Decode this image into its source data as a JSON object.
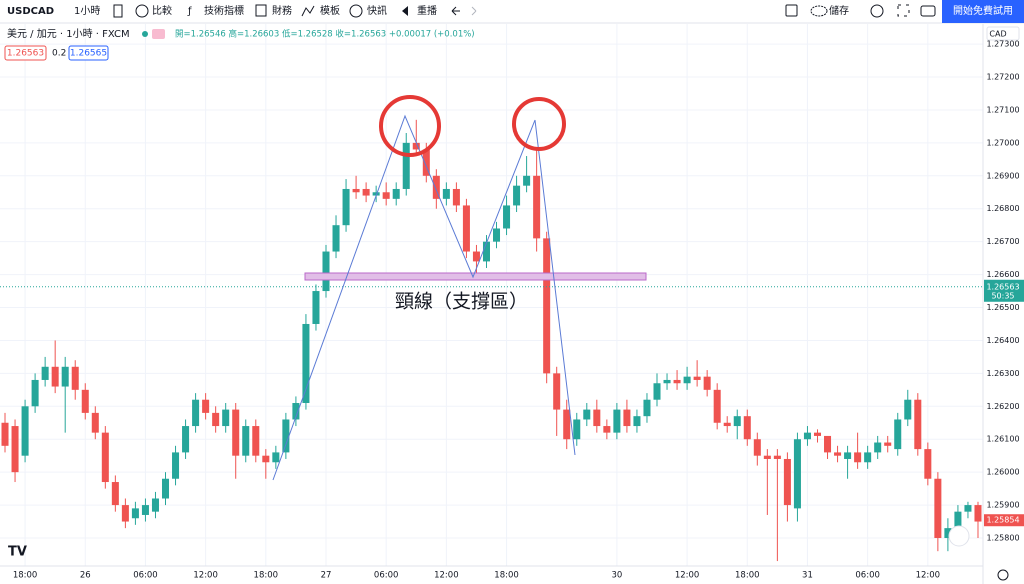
{
  "ui": {
    "symbol": "USDCAD",
    "interval": "1小時",
    "compare": "比較",
    "indicators": "技術指標",
    "financials": "財務",
    "templates": "模板",
    "alerts": "快訊",
    "replay": "重播",
    "save": "儲存",
    "trial": "開始免費試用",
    "pair": "美元 / 加元 · 1小時 · FXCM",
    "ohlc": "開=1.26546 高=1.26603 低=1.26528 收=1.26563 +0.00017 (+0.01%)",
    "bid": "1.26563",
    "spread": "0.2",
    "ask": "1.26565",
    "currency": "CAD"
  },
  "chart_data": {
    "type": "candlestick",
    "annotation": "頸線（支撐區）",
    "up_color": "#26a69a",
    "down_color": "#ef5350",
    "grid": true,
    "categories": [
      null,
      null,
      "18:00",
      null,
      null,
      null,
      null,
      null,
      "26",
      null,
      null,
      null,
      null,
      null,
      "06:00",
      null,
      null,
      null,
      null,
      null,
      "12:00",
      null,
      null,
      null,
      null,
      null,
      "18:00",
      null,
      null,
      null,
      null,
      null,
      "27",
      null,
      null,
      null,
      null,
      null,
      "06:00",
      null,
      null,
      null,
      null,
      null,
      "12:00",
      null,
      null,
      null,
      null,
      null,
      "18:00",
      null,
      null,
      null,
      null,
      null,
      null,
      null,
      null,
      null,
      null,
      "30",
      null,
      null,
      null,
      null,
      null,
      null,
      "12:00",
      null,
      null,
      null,
      null,
      null,
      "18:00",
      null,
      null,
      null,
      null,
      null,
      "31",
      null,
      null,
      null,
      null,
      null,
      "06:00",
      null,
      null,
      null,
      null,
      null,
      "12:00",
      null,
      null,
      null,
      null,
      null
    ],
    "open": [
      1.2615,
      1.2614,
      1.2605,
      1.262,
      1.2628,
      1.2632,
      1.2626,
      1.2632,
      1.2625,
      1.2618,
      1.2612,
      1.2597,
      1.259,
      1.2586,
      1.2587,
      1.2588,
      1.2592,
      1.2598,
      1.2606,
      1.2614,
      1.2622,
      1.2618,
      1.2614,
      1.2619,
      1.2605,
      1.2614,
      1.2605,
      1.2603,
      1.2606,
      1.2616,
      1.2621,
      1.2645,
      1.2655,
      1.2667,
      1.2675,
      1.2686,
      1.2686,
      1.2684,
      1.2685,
      1.2683,
      1.2686,
      1.27,
      1.2698,
      1.269,
      1.2683,
      1.2686,
      1.2681,
      1.2667,
      1.2664,
      1.267,
      1.2674,
      1.2681,
      1.2687,
      1.269,
      1.2671,
      1.263,
      1.2619,
      1.261,
      1.2616,
      1.2619,
      1.2614,
      1.2612,
      1.2619,
      1.2614,
      1.2617,
      1.2622,
      1.2627,
      1.2628,
      1.2627,
      1.2629,
      1.2629,
      1.2625,
      1.2615,
      1.2614,
      1.2617,
      1.261,
      1.2605,
      1.2605,
      1.2604,
      1.2589,
      1.261,
      1.2612,
      1.2611,
      1.2606,
      1.2604,
      1.2606,
      1.2603,
      1.2606,
      1.2609,
      1.2607,
      1.2616,
      1.2622,
      1.2607,
      1.2598,
      1.258,
      1.2583,
      1.2588,
      1.259
    ],
    "high": [
      1.2618,
      1.2616,
      1.2622,
      1.263,
      1.2635,
      1.264,
      1.2635,
      1.2634,
      1.2627,
      1.262,
      1.2614,
      1.2599,
      1.2592,
      1.2591,
      1.2592,
      1.2594,
      1.26,
      1.2608,
      1.2616,
      1.2624,
      1.2624,
      1.262,
      1.2621,
      1.2621,
      1.2616,
      1.2616,
      1.2607,
      1.2608,
      1.2618,
      1.2623,
      1.2648,
      1.2657,
      1.2669,
      1.2678,
      1.2689,
      1.269,
      1.2688,
      1.2687,
      1.2688,
      1.2688,
      1.2703,
      1.2707,
      1.27,
      1.2692,
      1.2688,
      1.2688,
      1.2683,
      1.2669,
      1.2672,
      1.2676,
      1.2684,
      1.269,
      1.2696,
      1.2698,
      1.2673,
      1.2632,
      1.2622,
      1.2618,
      1.2621,
      1.2622,
      1.2616,
      1.2621,
      1.2622,
      1.2619,
      1.2624,
      1.263,
      1.263,
      1.2631,
      1.2632,
      1.2634,
      1.2631,
      1.2627,
      1.2617,
      1.2619,
      1.2619,
      1.2612,
      1.2607,
      1.2607,
      1.2606,
      1.2612,
      1.2614,
      1.2613,
      1.261,
      1.2608,
      1.2608,
      1.2612,
      1.2608,
      1.2611,
      1.2611,
      1.2618,
      1.2625,
      1.2624,
      1.2609,
      1.26,
      1.2586,
      1.259,
      1.2591,
      1.2591
    ],
    "low": [
      1.2606,
      1.2597,
      1.2603,
      1.2618,
      1.2626,
      1.2624,
      1.2612,
      1.2622,
      1.2616,
      1.261,
      1.2595,
      1.2588,
      1.2583,
      1.2584,
      1.2585,
      1.2586,
      1.259,
      1.2596,
      1.2604,
      1.2612,
      1.2616,
      1.2612,
      1.2612,
      1.2598,
      1.2603,
      1.2603,
      1.2598,
      1.2601,
      1.2604,
      1.2614,
      1.2619,
      1.2643,
      1.2653,
      1.2665,
      1.2673,
      1.2683,
      1.2682,
      1.2682,
      1.2681,
      1.2681,
      1.2684,
      1.2696,
      1.2688,
      1.268,
      1.2681,
      1.2679,
      1.2665,
      1.266,
      1.2662,
      1.2668,
      1.2672,
      1.2679,
      1.2685,
      1.2667,
      1.2627,
      1.2611,
      1.2607,
      1.2608,
      1.2614,
      1.2612,
      1.261,
      1.261,
      1.2612,
      1.2612,
      1.2615,
      1.262,
      1.2625,
      1.2625,
      1.2625,
      1.2626,
      1.2623,
      1.2613,
      1.2612,
      1.261,
      1.2608,
      1.2602,
      1.2587,
      1.2573,
      1.2585,
      1.2585,
      1.2608,
      1.2609,
      1.2604,
      1.2603,
      1.2598,
      1.2601,
      1.2601,
      1.2604,
      1.2606,
      1.2605,
      1.2614,
      1.2605,
      1.2596,
      1.2576,
      1.2576,
      1.2581,
      1.2586,
      1.258
    ],
    "close": [
      1.2608,
      1.26,
      1.262,
      1.2628,
      1.2632,
      1.2626,
      1.2632,
      1.2625,
      1.2618,
      1.2612,
      1.2597,
      1.259,
      1.2585,
      1.2589,
      1.259,
      1.2592,
      1.2598,
      1.2606,
      1.2614,
      1.2622,
      1.2618,
      1.2614,
      1.2619,
      1.2605,
      1.2614,
      1.2605,
      1.2603,
      1.2606,
      1.2616,
      1.2621,
      1.2645,
      1.2655,
      1.2667,
      1.2675,
      1.2686,
      1.2685,
      1.2684,
      1.2685,
      1.2683,
      1.2686,
      1.27,
      1.2698,
      1.269,
      1.2683,
      1.2686,
      1.2681,
      1.2667,
      1.2664,
      1.267,
      1.2674,
      1.2681,
      1.2687,
      1.269,
      1.2671,
      1.263,
      1.2619,
      1.261,
      1.2616,
      1.2619,
      1.2614,
      1.2612,
      1.2619,
      1.2614,
      1.2617,
      1.2622,
      1.2627,
      1.2628,
      1.2627,
      1.2629,
      1.2628,
      1.2625,
      1.2615,
      1.2614,
      1.2617,
      1.261,
      1.2605,
      1.2604,
      1.2604,
      1.259,
      1.261,
      1.2612,
      1.2611,
      1.2606,
      1.2605,
      1.2606,
      1.2603,
      1.2606,
      1.2609,
      1.2608,
      1.2616,
      1.2622,
      1.2607,
      1.2598,
      1.258,
      1.2583,
      1.2588,
      1.259,
      1.2585
    ],
    "ylim": [
      1.25715,
      1.27361
    ],
    "yticks": [
      {
        "value": 1.273,
        "label": "1.27300"
      },
      {
        "value": 1.272,
        "label": "1.27200"
      },
      {
        "value": 1.271,
        "label": "1.27100"
      },
      {
        "value": 1.27,
        "label": "1.27000"
      },
      {
        "value": 1.269,
        "label": "1.26900"
      },
      {
        "value": 1.268,
        "label": "1.26800"
      },
      {
        "value": 1.267,
        "label": "1.26700"
      },
      {
        "value": 1.266,
        "label": "1.26600"
      },
      {
        "value": 1.265,
        "label": "1.26500"
      },
      {
        "value": 1.264,
        "label": "1.26400"
      },
      {
        "value": 1.263,
        "label": "1.26300"
      },
      {
        "value": 1.262,
        "label": "1.26200"
      },
      {
        "value": 1.261,
        "label": "1.26100"
      },
      {
        "value": 1.26,
        "label": "1.26000"
      },
      {
        "value": 1.259,
        "label": "1.25900"
      },
      {
        "value": 1.258,
        "label": "1.25800"
      }
    ],
    "current_price": {
      "value": 1.26563,
      "label": "1.26563"
    },
    "countdown": "50:35",
    "last_price": {
      "value": 1.25854,
      "label": "1.25854"
    }
  }
}
